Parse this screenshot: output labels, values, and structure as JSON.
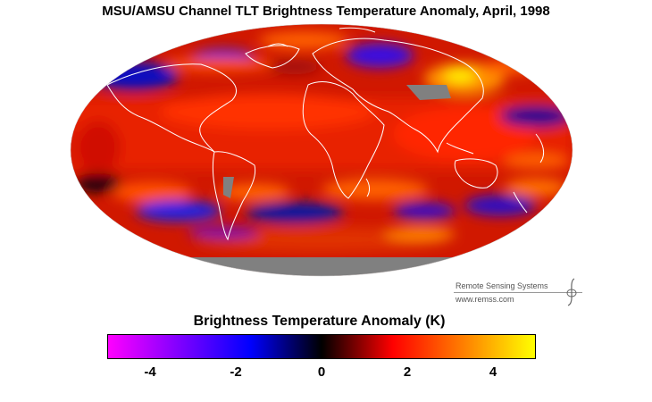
{
  "title": "MSU/AMSU Channel TLT Brightness Temperature Anomaly, April, 1998",
  "credit": {
    "organization": "Remote Sensing Systems",
    "url": "www.remss.com"
  },
  "colorbar": {
    "title": "Brightness Temperature Anomaly (K)",
    "range": [
      -5,
      5
    ],
    "ticks": [
      {
        "value": -4,
        "label": "-4"
      },
      {
        "value": -2,
        "label": "-2"
      },
      {
        "value": 0,
        "label": "0"
      },
      {
        "value": 2,
        "label": "2"
      },
      {
        "value": 4,
        "label": "4"
      }
    ],
    "colors": [
      "#ff00ff",
      "#7f00ff",
      "#0000ff",
      "#000000",
      "#ff0000",
      "#ff8000",
      "#ffff00"
    ],
    "no_data_color": "#808080"
  },
  "map": {
    "projection": "Mollweide",
    "background_color": "#d01800"
  }
}
